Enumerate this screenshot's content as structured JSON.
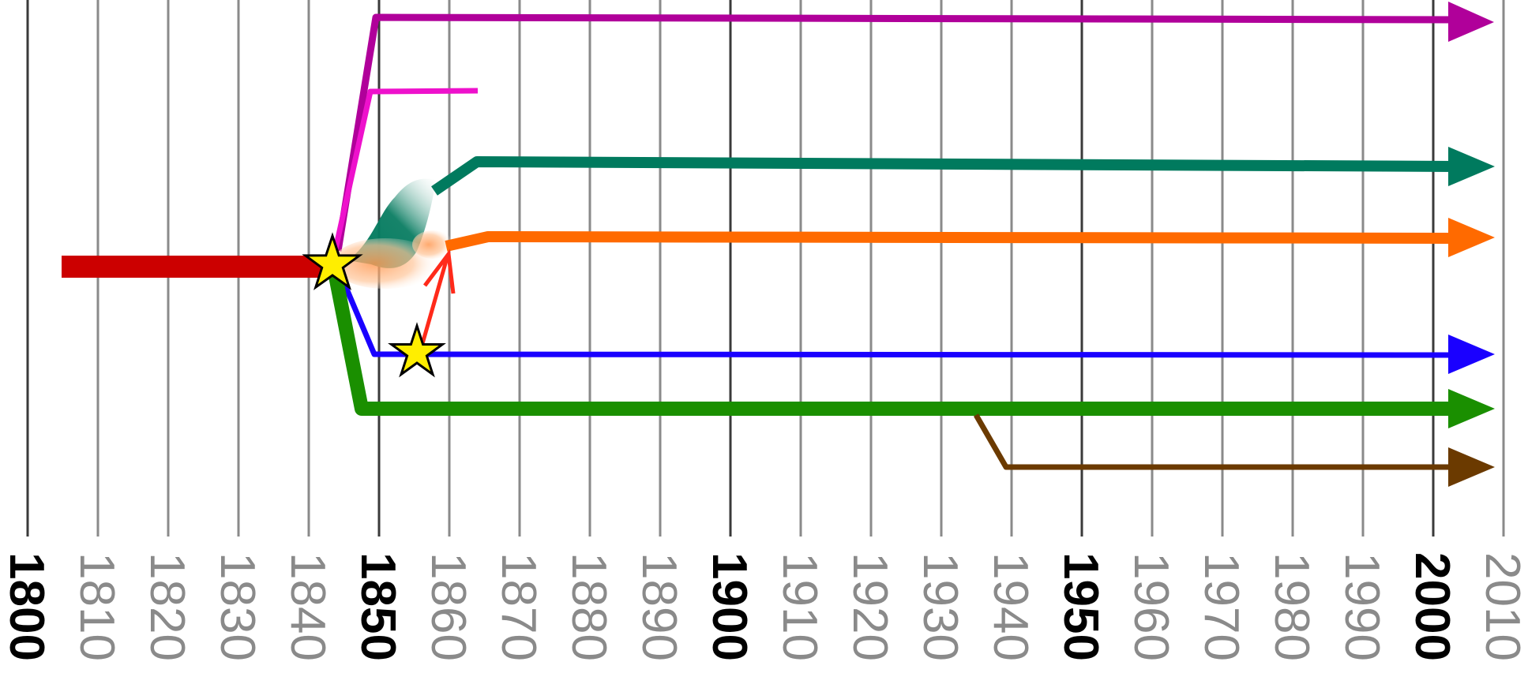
{
  "axis": {
    "start_year": 1800,
    "end_year": 2010,
    "ticks": [
      {
        "year": 1800,
        "label": "1800",
        "major": true
      },
      {
        "year": 1810,
        "label": "1810",
        "major": false
      },
      {
        "year": 1820,
        "label": "1820",
        "major": false
      },
      {
        "year": 1830,
        "label": "1830",
        "major": false
      },
      {
        "year": 1840,
        "label": "1840",
        "major": false
      },
      {
        "year": 1850,
        "label": "1850",
        "major": true
      },
      {
        "year": 1860,
        "label": "1860",
        "major": false
      },
      {
        "year": 1870,
        "label": "1870",
        "major": false
      },
      {
        "year": 1880,
        "label": "1880",
        "major": false
      },
      {
        "year": 1890,
        "label": "1890",
        "major": false
      },
      {
        "year": 1900,
        "label": "1900",
        "major": true
      },
      {
        "year": 1910,
        "label": "1910",
        "major": false
      },
      {
        "year": 1920,
        "label": "1920",
        "major": false
      },
      {
        "year": 1930,
        "label": "1930",
        "major": false
      },
      {
        "year": 1940,
        "label": "1940",
        "major": false
      },
      {
        "year": 1950,
        "label": "1950",
        "major": true
      },
      {
        "year": 1960,
        "label": "1960",
        "major": false
      },
      {
        "year": 1970,
        "label": "1970",
        "major": false
      },
      {
        "year": 1980,
        "label": "1980",
        "major": false
      },
      {
        "year": 1990,
        "label": "1990",
        "major": false
      },
      {
        "year": 2000,
        "label": "2000",
        "major": true
      },
      {
        "year": 2010,
        "label": "2010",
        "major": false
      }
    ]
  },
  "colors": {
    "major_gridline": "#3a3a3a",
    "minor_gridline": "#8a8a8a",
    "red": "#cc0000",
    "purple": "#b0009a",
    "magenta": "#ee11cc",
    "teal": "#007a5e",
    "orange": "#ff6a00",
    "light_red": "#ff2a1a",
    "blue": "#1a00ff",
    "green": "#1a8f00",
    "brown": "#6b3a00",
    "star_fill": "#ffee00",
    "star_stroke": "#000000"
  }
}
